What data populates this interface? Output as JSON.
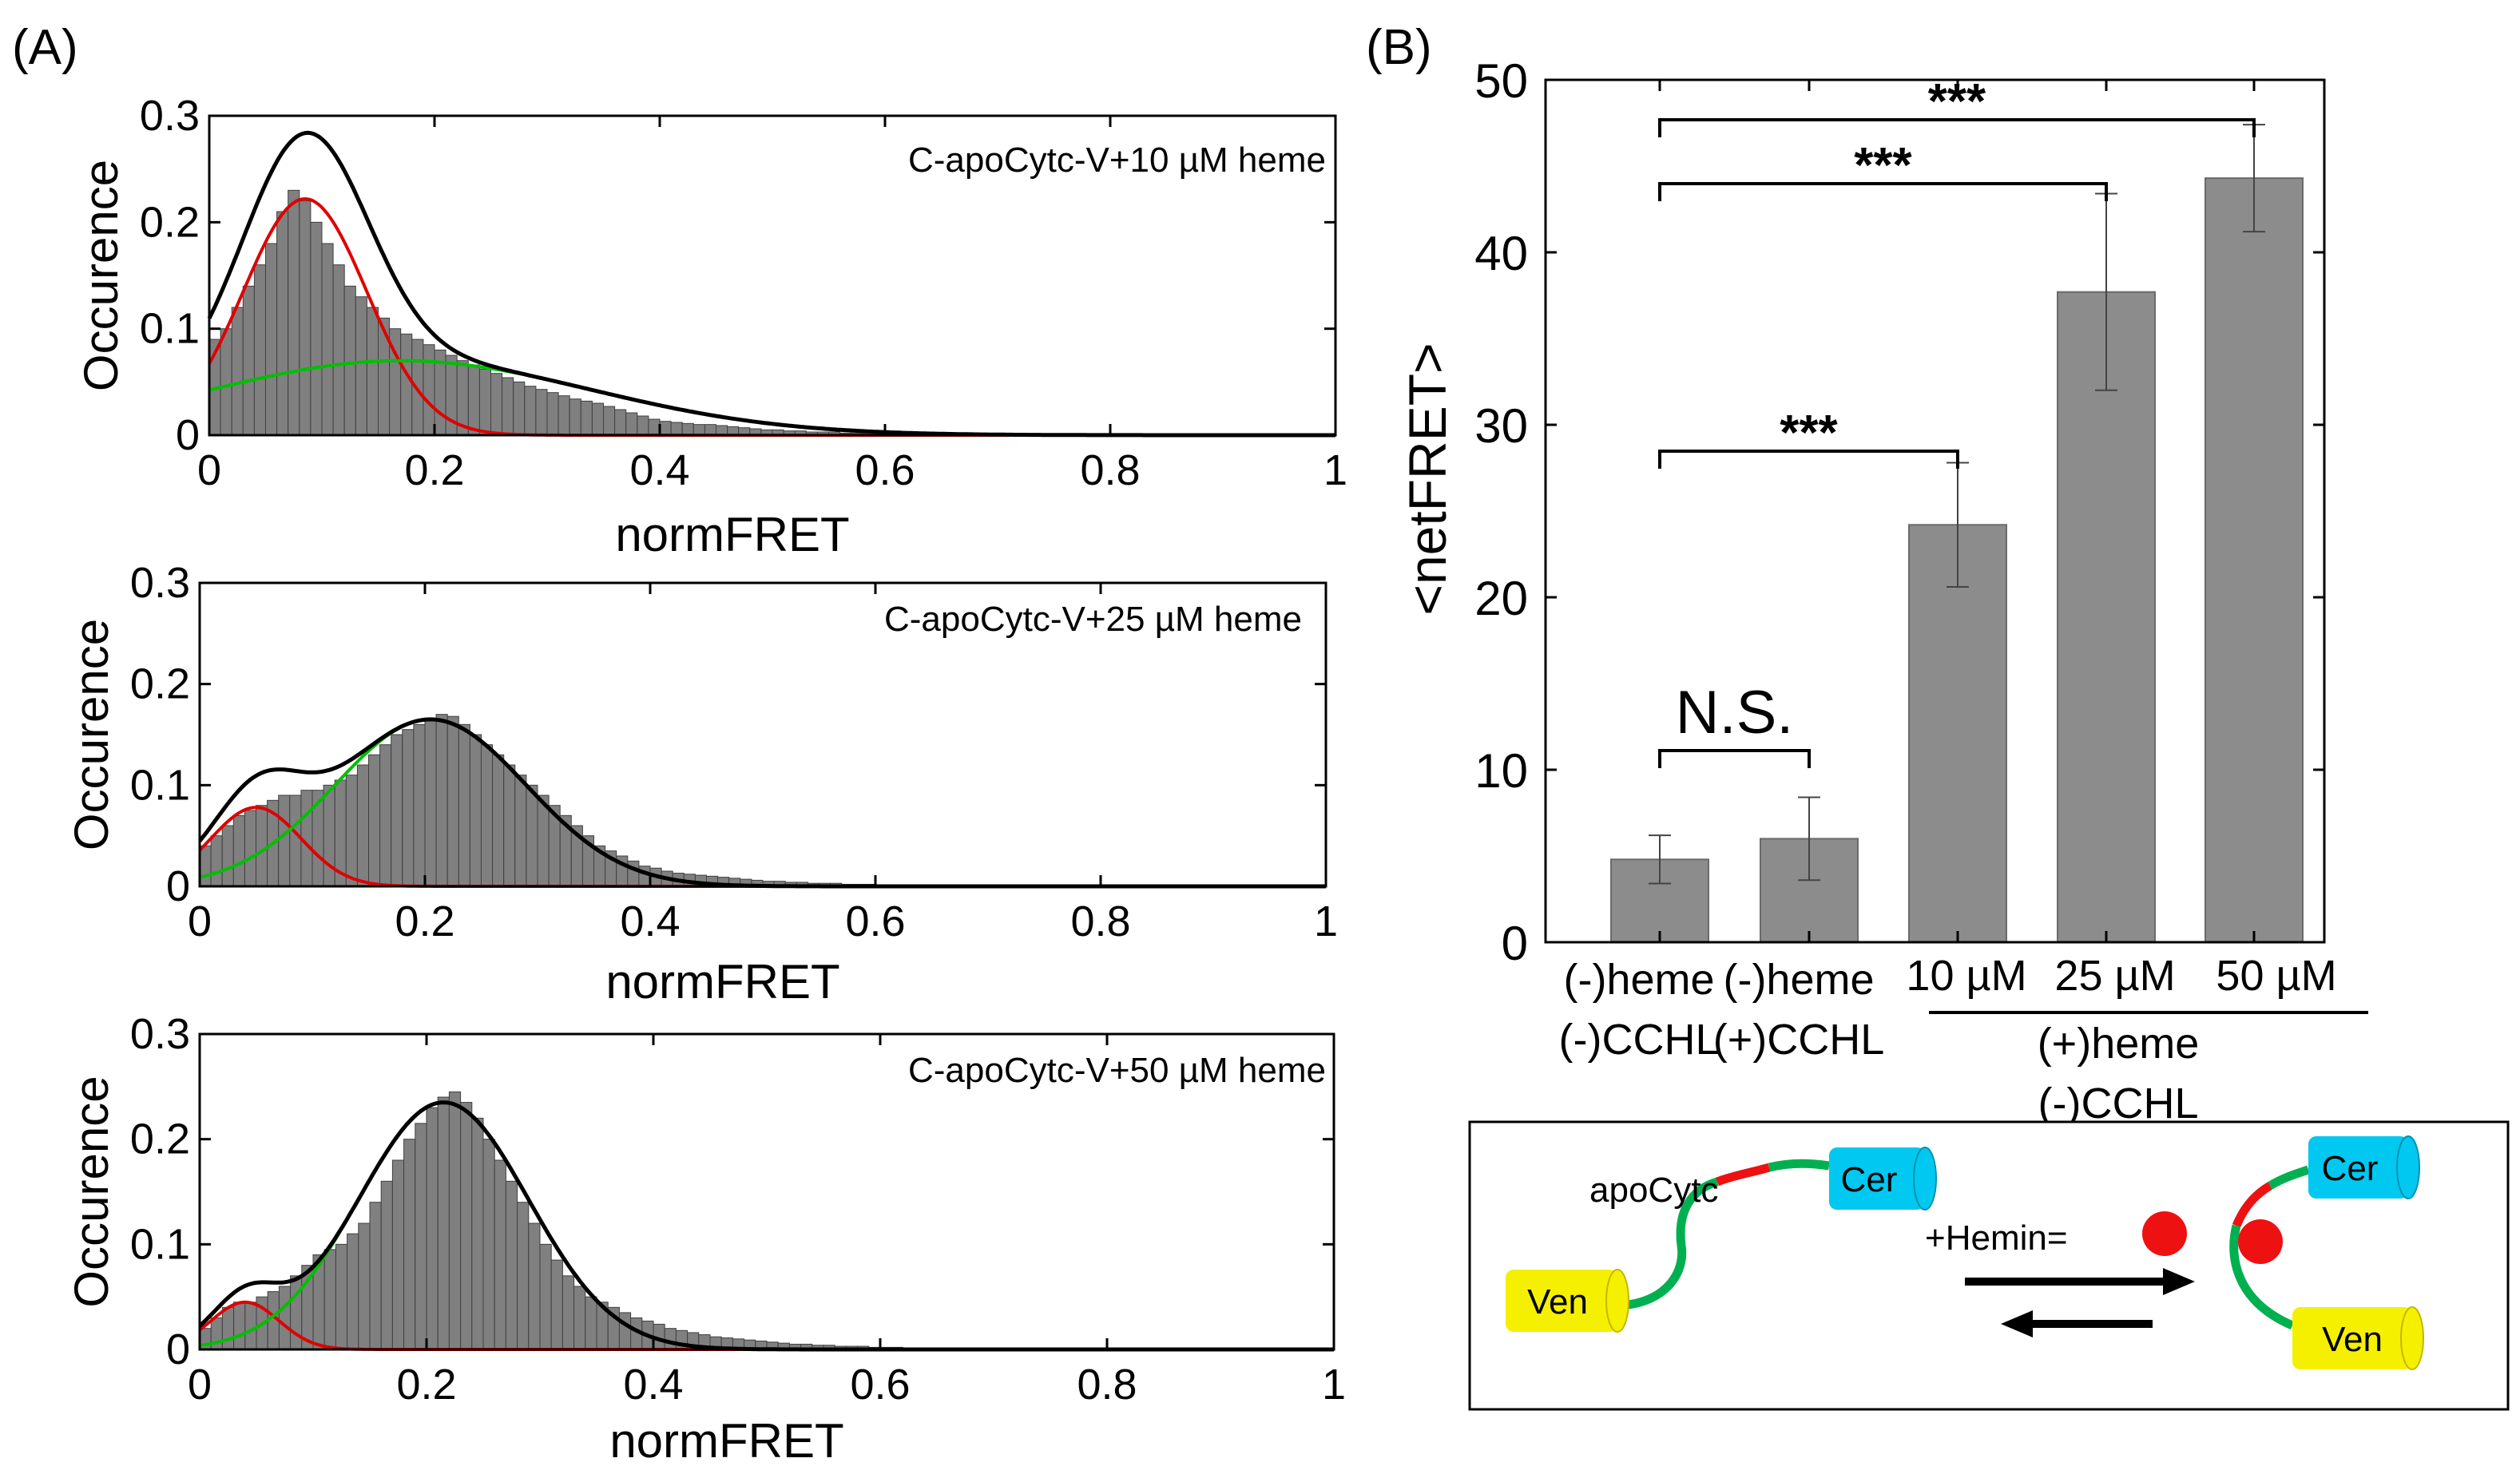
{
  "panels": {
    "a": "(A)",
    "b": "(B)"
  },
  "chart_data": [
    {
      "type": "bar",
      "panel": "A-top",
      "annotation": "C-apoCytc-V+10 µM heme",
      "xlabel": "normFRET",
      "ylabel": "Occurence",
      "xlim": [
        0,
        1
      ],
      "ylim": [
        0,
        0.3
      ],
      "xticks": [
        "0",
        "0.2",
        "0.4",
        "0.6",
        "0.8",
        "1"
      ],
      "yticks": [
        "0",
        "0.1",
        "0.2",
        "0.3"
      ],
      "bin_width": 0.01,
      "values": [
        0.09,
        0.1,
        0.12,
        0.14,
        0.16,
        0.18,
        0.21,
        0.23,
        0.22,
        0.2,
        0.18,
        0.16,
        0.14,
        0.13,
        0.12,
        0.11,
        0.1,
        0.095,
        0.09,
        0.085,
        0.08,
        0.075,
        0.07,
        0.066,
        0.062,
        0.058,
        0.054,
        0.05,
        0.046,
        0.043,
        0.04,
        0.037,
        0.034,
        0.032,
        0.03,
        0.027,
        0.024,
        0.021,
        0.018,
        0.015,
        0.013,
        0.012,
        0.011,
        0.01,
        0.01,
        0.009,
        0.008,
        0.007,
        0.006,
        0.005,
        0.005,
        0.004,
        0.004,
        0.003,
        0.003,
        0.003,
        0.002,
        0.002,
        0.002,
        0.001,
        0.001,
        0.001,
        0.001,
        0.0005,
        0.0005,
        0.0005,
        0.0005,
        0.0003,
        0.0003,
        0,
        0,
        0,
        0,
        0,
        0,
        0,
        0,
        0,
        0,
        0,
        0,
        0,
        0,
        0,
        0,
        0,
        0,
        0,
        0,
        0,
        0,
        0,
        0,
        0,
        0,
        0,
        0,
        0,
        0,
        0
      ],
      "fits": [
        {
          "color": "#e00000",
          "amp": 0.222,
          "mu": 0.085,
          "sigma": 0.055
        },
        {
          "color": "#00c000",
          "amp": 0.07,
          "mu": 0.17,
          "sigma": 0.17
        }
      ],
      "sum_color": "#000000"
    },
    {
      "type": "bar",
      "panel": "A-middle",
      "annotation": "C-apoCytc-V+25 µM heme",
      "xlabel": "normFRET",
      "ylabel": "Occurence",
      "xlim": [
        0,
        1
      ],
      "ylim": [
        0,
        0.3
      ],
      "xticks": [
        "0",
        "0.2",
        "0.4",
        "0.6",
        "0.8",
        "1"
      ],
      "yticks": [
        "0",
        "0.1",
        "0.2",
        "0.3"
      ],
      "bin_width": 0.01,
      "values": [
        0.04,
        0.05,
        0.06,
        0.07,
        0.075,
        0.08,
        0.085,
        0.09,
        0.09,
        0.095,
        0.095,
        0.1,
        0.105,
        0.11,
        0.12,
        0.13,
        0.14,
        0.15,
        0.155,
        0.16,
        0.165,
        0.17,
        0.168,
        0.16,
        0.15,
        0.14,
        0.13,
        0.12,
        0.11,
        0.1,
        0.09,
        0.08,
        0.07,
        0.06,
        0.05,
        0.04,
        0.035,
        0.03,
        0.025,
        0.02,
        0.018,
        0.015,
        0.013,
        0.012,
        0.011,
        0.01,
        0.009,
        0.008,
        0.007,
        0.006,
        0.005,
        0.005,
        0.004,
        0.004,
        0.003,
        0.003,
        0.003,
        0.002,
        0.002,
        0.002,
        0.001,
        0.001,
        0.001,
        0.001,
        0.001,
        0,
        0,
        0,
        0,
        0,
        0,
        0,
        0,
        0,
        0,
        0,
        0,
        0,
        0,
        0,
        0,
        0,
        0,
        0,
        0,
        0,
        0,
        0,
        0,
        0,
        0,
        0,
        0,
        0,
        0,
        0,
        0,
        0,
        0,
        0
      ],
      "fits": [
        {
          "color": "#e00000",
          "amp": 0.078,
          "mu": 0.05,
          "sigma": 0.04
        },
        {
          "color": "#00c000",
          "amp": 0.165,
          "mu": 0.205,
          "sigma": 0.085
        }
      ],
      "sum_color": "#000000"
    },
    {
      "type": "bar",
      "panel": "A-bottom",
      "annotation": "C-apoCytc-V+50 µM heme",
      "xlabel": "normFRET",
      "ylabel": "Occurence",
      "xlim": [
        0,
        1
      ],
      "ylim": [
        0,
        0.3
      ],
      "xticks": [
        "0",
        "0.2",
        "0.4",
        "0.6",
        "0.8",
        "1"
      ],
      "yticks": [
        "0",
        "0.1",
        "0.2",
        "0.3"
      ],
      "bin_width": 0.01,
      "values": [
        0.02,
        0.03,
        0.04,
        0.045,
        0.045,
        0.05,
        0.055,
        0.06,
        0.07,
        0.08,
        0.09,
        0.095,
        0.1,
        0.11,
        0.12,
        0.14,
        0.16,
        0.18,
        0.2,
        0.215,
        0.23,
        0.24,
        0.245,
        0.235,
        0.22,
        0.2,
        0.18,
        0.16,
        0.14,
        0.12,
        0.1,
        0.085,
        0.07,
        0.06,
        0.05,
        0.045,
        0.04,
        0.035,
        0.03,
        0.027,
        0.024,
        0.02,
        0.018,
        0.016,
        0.014,
        0.012,
        0.011,
        0.01,
        0.009,
        0.008,
        0.007,
        0.006,
        0.005,
        0.005,
        0.004,
        0.004,
        0.003,
        0.003,
        0.003,
        0.002,
        0.002,
        0.002,
        0.001,
        0.001,
        0.001,
        0.001,
        0,
        0,
        0,
        0,
        0,
        0,
        0,
        0,
        0,
        0,
        0,
        0,
        0,
        0,
        0,
        0,
        0,
        0,
        0,
        0,
        0,
        0,
        0,
        0,
        0,
        0,
        0,
        0,
        0,
        0,
        0,
        0,
        0,
        0,
        0
      ],
      "fits": [
        {
          "color": "#e00000",
          "amp": 0.045,
          "mu": 0.04,
          "sigma": 0.03
        },
        {
          "color": "#00c000",
          "amp": 0.235,
          "mu": 0.215,
          "sigma": 0.075
        }
      ],
      "sum_color": "#000000"
    },
    {
      "type": "bar",
      "panel": "B",
      "ylabel": "<netFRET>",
      "ylim": [
        0,
        50
      ],
      "yticks": [
        "0",
        "10",
        "20",
        "30",
        "40",
        "50"
      ],
      "categories": [
        "(-)heme (-)CCHL",
        "(-)heme (+)CCHL",
        "10 µM",
        "25 µM",
        "50 µM"
      ],
      "values": [
        4.8,
        6.0,
        24.2,
        37.7,
        44.3
      ],
      "errors": [
        1.4,
        2.4,
        3.6,
        5.7,
        3.1
      ],
      "bar_color": "#8c8c8c",
      "category_labels": {
        "c1_line1": "(-)heme",
        "c1_line2": "(-)CCHL",
        "c2_line1": "(-)heme",
        "c2_line2": "(+)CCHL",
        "c3": "10 µM",
        "c4": "25 µM",
        "c5": "50 µM",
        "group_line1": "(+)heme",
        "group_line2": "(-)CCHL"
      },
      "significance": [
        {
          "from": 0,
          "to": 1,
          "label": "N.S."
        },
        {
          "from": 0,
          "to": 2,
          "label": "***"
        },
        {
          "from": 0,
          "to": 3,
          "label": "***"
        },
        {
          "from": 0,
          "to": 4,
          "label": "***"
        }
      ]
    }
  ],
  "schematic": {
    "apo_label": "apoCytc",
    "cer_label": "Cer",
    "ven_label": "Ven",
    "hemin_label": "+Hemin=",
    "cer_color": "#00c8f0",
    "ven_color": "#f5f000",
    "linker_color": "#00b050",
    "heme_color": "#ee1111"
  }
}
